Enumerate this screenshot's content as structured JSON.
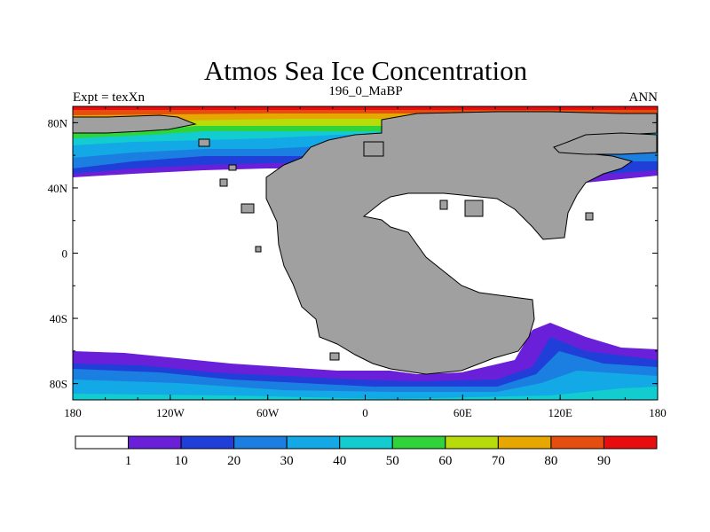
{
  "title": "Atmos Sea Ice Concentration",
  "left_label": "Expt = texXn",
  "center_label": "196_0_MaBP",
  "right_label": "ANN",
  "x_ticks": [
    "180",
    "120W",
    "60W",
    "0",
    "60E",
    "120E",
    "180"
  ],
  "y_ticks": [
    "80N",
    "40N",
    "0",
    "40S",
    "80S"
  ],
  "colorbar": {
    "labels": [
      "1",
      "10",
      "20",
      "30",
      "40",
      "50",
      "60",
      "70",
      "80",
      "90"
    ],
    "colors": [
      "#ffffff",
      "#6a1fd8",
      "#1f3fd8",
      "#1a7fe0",
      "#12a9e6",
      "#12ccd0",
      "#2ed43a",
      "#b8dc0a",
      "#e6a800",
      "#e64e10",
      "#e80c0c"
    ]
  },
  "colors": {
    "land": "#a0a0a0",
    "ocean_ice_free": "#ffffff"
  }
}
